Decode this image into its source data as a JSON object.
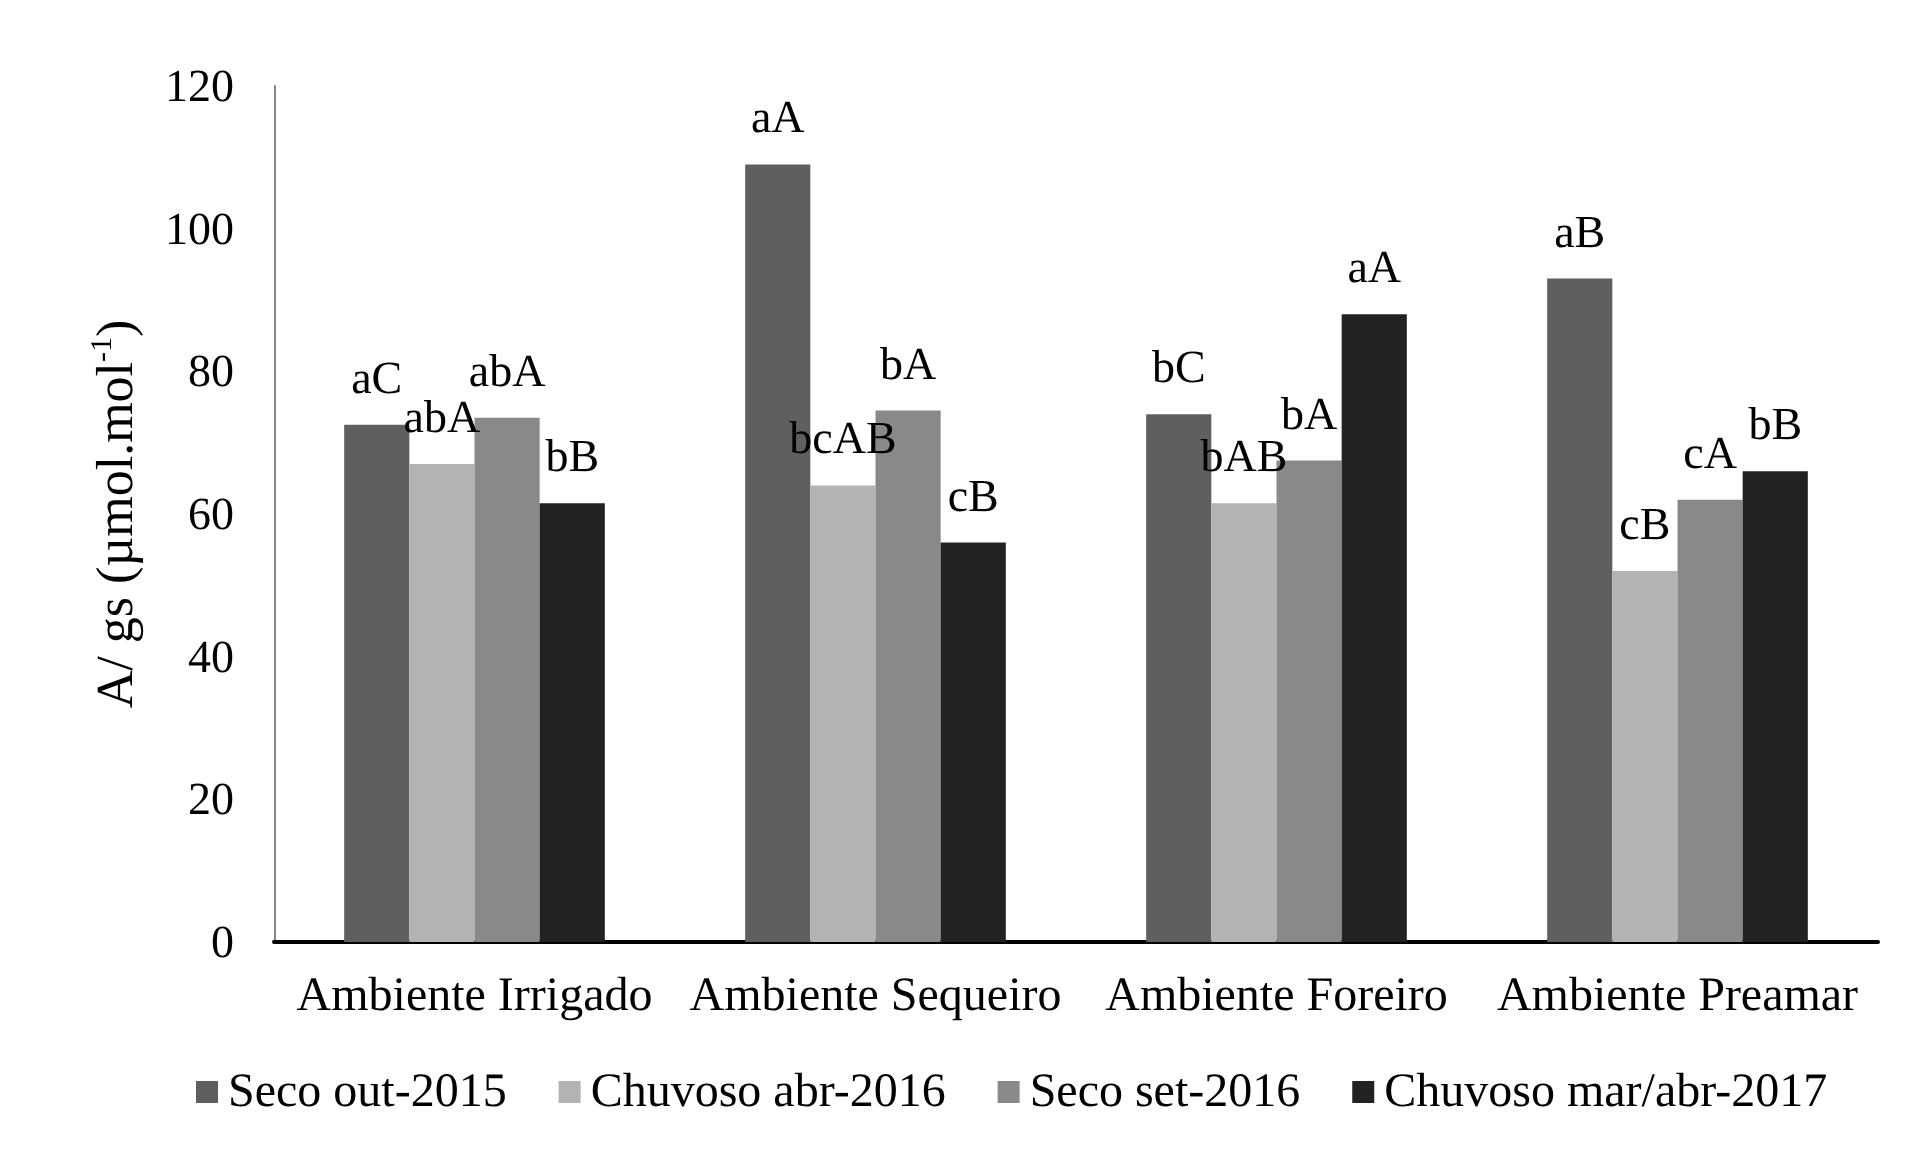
{
  "chart_data": {
    "type": "bar",
    "categories": [
      "Ambiente Irrigado",
      "Ambiente Sequeiro",
      "Ambiente Foreiro",
      "Ambiente Preamar"
    ],
    "ylabel": "A/ gs (µmol.mol$^{-1}$)",
    "ylim": [
      0,
      120
    ],
    "yticks": [
      0,
      20,
      40,
      60,
      80,
      100,
      120
    ],
    "legend": "bottom",
    "series": [
      {
        "name": "Seco out-2015",
        "color": "#5f5f5f",
        "values": [
          72.5,
          109,
          74,
          93
        ],
        "value_labels": [
          "aC",
          "aA",
          "bC",
          "aB"
        ]
      },
      {
        "name": "Chuvoso abr-2016",
        "color": "#b3b3b3",
        "values": [
          67,
          64,
          61.5,
          52
        ],
        "value_labels": [
          "abA",
          "bcAB",
          "bAB",
          "cB"
        ]
      },
      {
        "name": "Seco set-2016",
        "color": "#898989",
        "values": [
          73.5,
          74.5,
          67.5,
          62
        ],
        "value_labels": [
          "abA",
          "bA",
          "bA",
          "cA"
        ]
      },
      {
        "name": "Chuvoso mar/abr-2017",
        "color": "#222222",
        "values": [
          61.5,
          56,
          88,
          66
        ],
        "value_labels": [
          "bB",
          "cB",
          "aA",
          "bB"
        ]
      }
    ]
  }
}
